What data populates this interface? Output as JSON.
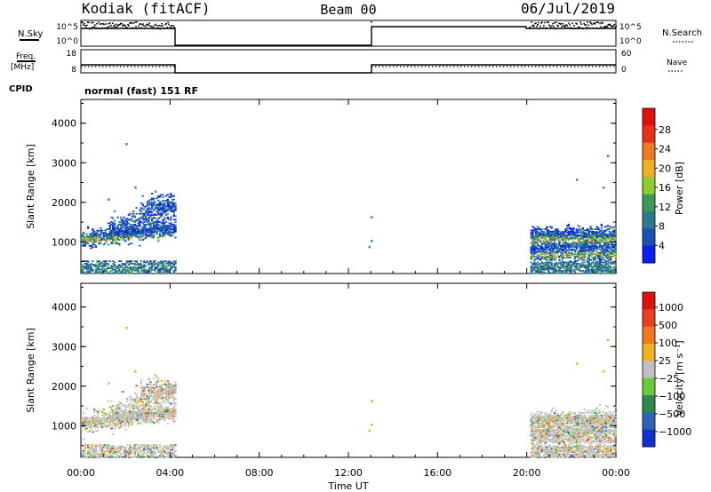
{
  "header": {
    "station": "Kodiak (fitACF)",
    "beam": "Beam 00",
    "date": "06/Jul/2019"
  },
  "top_panels": {
    "nsky_label": "N.Sky",
    "nsky_ticks": [
      "10^5",
      "10^0"
    ],
    "nsearch_label": "N.Search",
    "nsearch_ticks": [
      "10^5",
      "10^0"
    ],
    "freq_label": "Freq.",
    "freq_unit": "[MHz]",
    "freq_ticks": [
      "18",
      "8"
    ],
    "nave_label": "Nave",
    "nave_ticks": [
      "60",
      "0"
    ],
    "cpid_label": "CPID",
    "cpid_text": "normal (fast) 151 RF"
  },
  "chart_data": [
    {
      "type": "heatmap",
      "name": "power",
      "ylabel": "Slant Range [km]",
      "xlabel": "",
      "ylim": [
        200,
        4600
      ],
      "xlim_hours": [
        0,
        24
      ],
      "y_ticks": [
        "1000",
        "2000",
        "3000",
        "4000"
      ],
      "colorbar": {
        "label": "Power [dB]",
        "ticks": [
          "4",
          "8",
          "12",
          "16",
          "20",
          "24",
          "28"
        ],
        "colors": [
          "#0a1ff0",
          "#1c4fb0",
          "#2e7a8a",
          "#3a9a5a",
          "#8ecb2e",
          "#f0b020",
          "#f07820",
          "#e8301a",
          "#e01010"
        ]
      },
      "data_spans_hours": [
        [
          0,
          4.2
        ],
        [
          20.1,
          24
        ]
      ],
      "echo_bands_km": [
        [
          950,
          1450
        ],
        [
          1500,
          2200
        ],
        [
          250,
          500
        ]
      ]
    },
    {
      "type": "heatmap",
      "name": "velocity",
      "ylabel": "Slant Range [km]",
      "xlabel": "Time UT",
      "ylim": [
        200,
        4600
      ],
      "xlim_hours": [
        0,
        24
      ],
      "y_ticks": [
        "1000",
        "2000",
        "3000",
        "4000"
      ],
      "x_ticks": [
        "00:00",
        "04:00",
        "08:00",
        "12:00",
        "16:00",
        "20:00",
        "00:00"
      ],
      "colorbar": {
        "label": "Velocity [m s⁻¹]",
        "ticks": [
          "1000",
          "500",
          "100",
          "25",
          "−25",
          "−100",
          "−500",
          "−1000"
        ],
        "colors": [
          "#1030d0",
          "#2c64b8",
          "#2e8a4a",
          "#6acb3a",
          "#c0c0c0",
          "#f0b020",
          "#f07820",
          "#e84018",
          "#e01010"
        ]
      },
      "data_spans_hours": [
        [
          0,
          4.2
        ],
        [
          20.1,
          24
        ]
      ]
    }
  ]
}
